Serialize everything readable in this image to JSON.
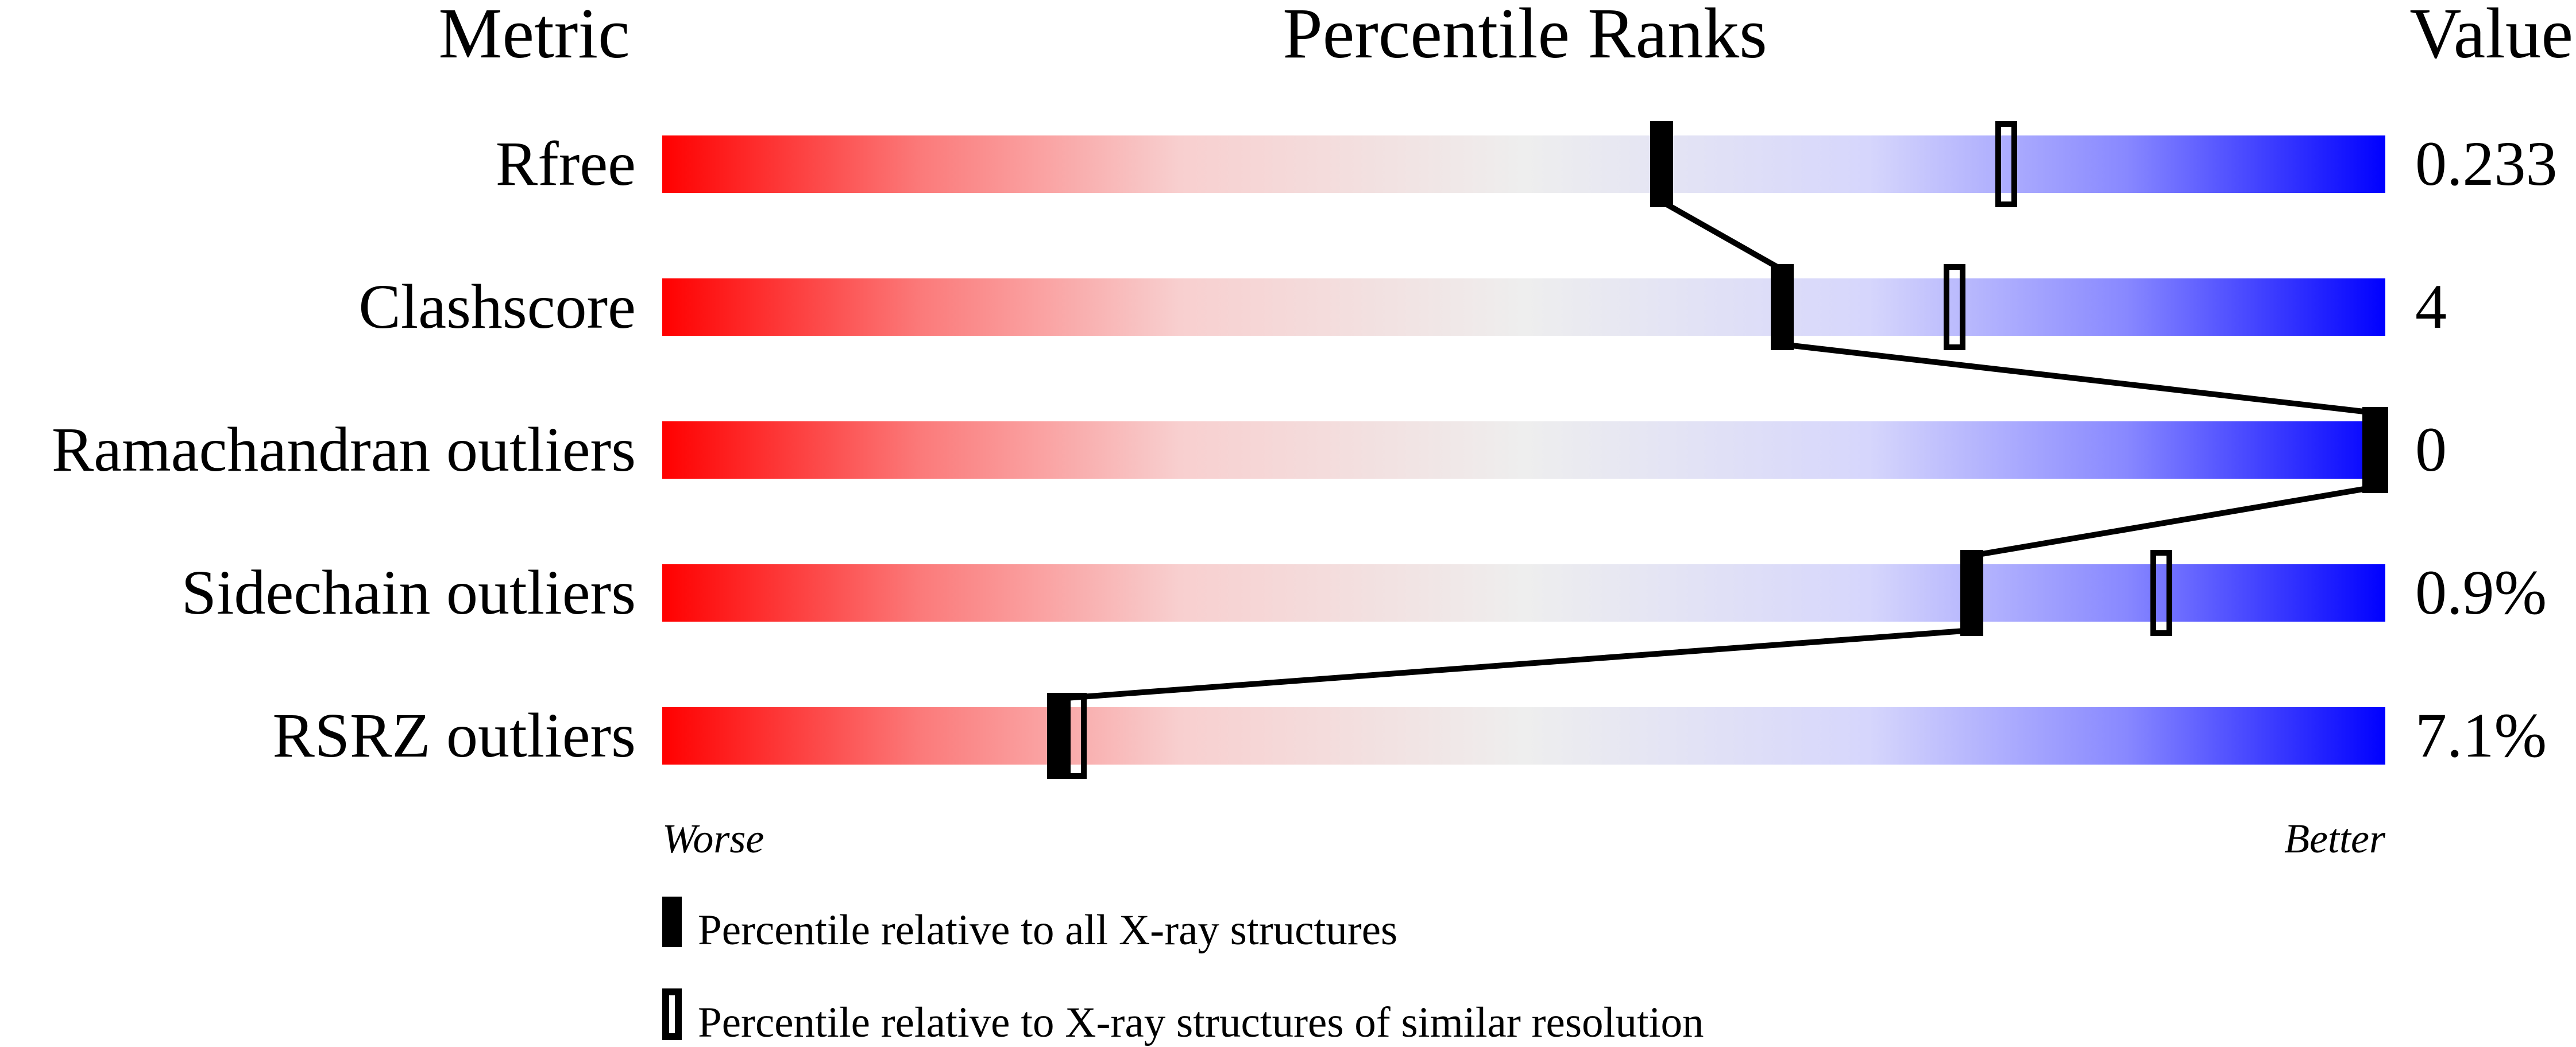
{
  "chart_data": {
    "type": "table",
    "headers": {
      "metric": "Metric",
      "ranks": "Percentile Ranks",
      "value": "Value"
    },
    "axis": {
      "left_label": "Worse",
      "right_label": "Better",
      "range": [
        0,
        100
      ]
    },
    "rows": [
      {
        "metric": "Rfree",
        "value": "0.233",
        "percentile_all": 58,
        "percentile_similar": 78
      },
      {
        "metric": "Clashscore",
        "value": "4",
        "percentile_all": 65,
        "percentile_similar": 75
      },
      {
        "metric": "Ramachandran outliers",
        "value": "0",
        "percentile_all": 100,
        "percentile_similar": 100
      },
      {
        "metric": "Sidechain outliers",
        "value": "0.9%",
        "percentile_all": 76,
        "percentile_similar": 87
      },
      {
        "metric": "RSRZ outliers",
        "value": "7.1%",
        "percentile_all": 23,
        "percentile_similar": 24
      }
    ],
    "legend": {
      "filled": "Percentile relative to all X-ray structures",
      "open": "Percentile relative to X-ray structures of similar resolution"
    },
    "colors": {
      "worse": "#ff0000",
      "middle": "#eeeeee",
      "better": "#0000ff",
      "marker": "#000000"
    }
  }
}
